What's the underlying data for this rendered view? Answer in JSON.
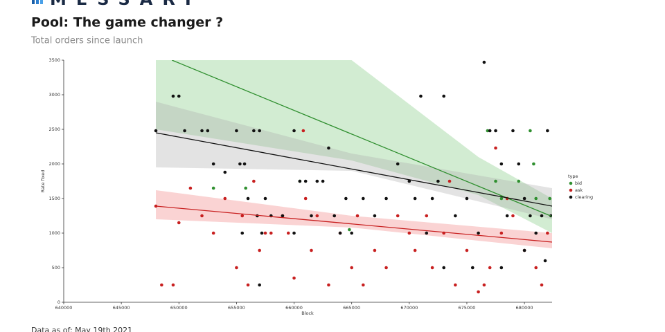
{
  "brand": "MESSARI",
  "chart_data": {
    "type": "scatter",
    "title": "Pool: The game changer ?",
    "subtitle": "Total orders since launch",
    "x_label": "Block",
    "y_label": "Rate fixed",
    "footnote": "Data as of: May 19th 2021",
    "legend_title": "type",
    "legend": "right",
    "xlim": [
      640000,
      682400
    ],
    "ylim": [
      0,
      3500
    ],
    "xticks": [
      640000,
      645000,
      650000,
      655000,
      660000,
      665000,
      670000,
      675000,
      680000
    ],
    "yticks": [
      0,
      500,
      1000,
      1500,
      2000,
      2500,
      3000,
      3500
    ],
    "series": [
      {
        "name": "bid",
        "color": "#2f8f2f",
        "band_color": "#7fc97f",
        "x": [
          653000,
          655800,
          660500,
          664800,
          676800,
          677500,
          678000,
          679500,
          680500,
          681000,
          682200,
          680800
        ],
        "y": [
          1650,
          1650,
          1750,
          1050,
          2480,
          1750,
          1500,
          1750,
          2480,
          1500,
          1500,
          2000
        ],
        "fit": {
          "x": [
            649400,
            682400
          ],
          "y": [
            3500,
            1240
          ]
        },
        "band": {
          "x": [
            648000,
            665000,
            676000,
            682400
          ],
          "lower": [
            2500,
            2050,
            1550,
            1000
          ],
          "upper": [
            3500,
            3500,
            2100,
            1500
          ]
        }
      },
      {
        "name": "ask",
        "color": "#c82020",
        "band_color": "#f08080",
        "x": [
          648000,
          648500,
          649500,
          650000,
          651000,
          652000,
          653000,
          654000,
          655000,
          655500,
          656000,
          656500,
          657000,
          658000,
          659000,
          659500,
          660000,
          660800,
          661000,
          661500,
          662000,
          663000,
          664000,
          665000,
          666000,
          667000,
          668000,
          669000,
          670000,
          670500,
          671500,
          672000,
          673000,
          674000,
          675000,
          676000,
          676500,
          677000,
          677500,
          678000,
          678500,
          679000,
          680000,
          681000,
          681500,
          682000,
          673500,
          665500,
          657500
        ],
        "y": [
          1390,
          250,
          250,
          1150,
          1650,
          1250,
          1000,
          1500,
          500,
          1250,
          250,
          1750,
          750,
          1000,
          1250,
          1000,
          350,
          2480,
          1500,
          750,
          1250,
          250,
          1000,
          500,
          250,
          750,
          500,
          1250,
          1000,
          750,
          1250,
          500,
          1000,
          250,
          750,
          150,
          250,
          500,
          2230,
          1000,
          1500,
          1250,
          750,
          500,
          250,
          1000,
          1750,
          1250,
          1000
        ],
        "fit": {
          "x": [
            648000,
            682400
          ],
          "y": [
            1390,
            870
          ]
        },
        "band": {
          "x": [
            648000,
            665000,
            682400
          ],
          "lower": [
            1200,
            1080,
            780
          ],
          "upper": [
            1620,
            1250,
            1000
          ]
        }
      },
      {
        "name": "clearing",
        "color": "#111111",
        "band_color": "#b0b0b0",
        "x": [
          648000,
          649500,
          650000,
          650500,
          652000,
          652500,
          653000,
          654000,
          655000,
          655300,
          655700,
          656500,
          657000,
          657500,
          656000,
          656800,
          657200,
          658000,
          659000,
          660000,
          660500,
          661000,
          661500,
          662000,
          662500,
          663000,
          663500,
          664000,
          665000,
          666000,
          667000,
          668000,
          669000,
          670000,
          670500,
          671000,
          671500,
          672000,
          672500,
          673000,
          674000,
          675000,
          676000,
          676500,
          677000,
          677500,
          678000,
          678500,
          679000,
          679500,
          680000,
          680500,
          681000,
          681500,
          682000,
          682300,
          675500,
          673000,
          678000,
          680000,
          664500,
          660000,
          655500,
          657000,
          681800
        ],
        "y": [
          2480,
          2980,
          2980,
          2480,
          2480,
          2480,
          2000,
          1880,
          2480,
          2000,
          2000,
          2480,
          2480,
          1500,
          1500,
          1250,
          1000,
          1250,
          1250,
          2480,
          1750,
          1750,
          1250,
          1750,
          1750,
          2230,
          1250,
          1000,
          1000,
          1500,
          1250,
          1500,
          2000,
          1750,
          1500,
          2980,
          1000,
          1500,
          1750,
          2980,
          1250,
          1500,
          1000,
          3470,
          2480,
          2480,
          2000,
          1250,
          2480,
          2000,
          1500,
          1250,
          1000,
          1250,
          2480,
          1250,
          500,
          500,
          500,
          750,
          1500,
          1000,
          1000,
          250,
          600
        ],
        "fit": {
          "x": [
            648000,
            682400
          ],
          "y": [
            2450,
            1390
          ]
        },
        "band": {
          "x": [
            648000,
            665000,
            682400
          ],
          "lower": [
            1950,
            1900,
            1200
          ],
          "upper": [
            2900,
            2150,
            1650
          ]
        }
      }
    ]
  }
}
